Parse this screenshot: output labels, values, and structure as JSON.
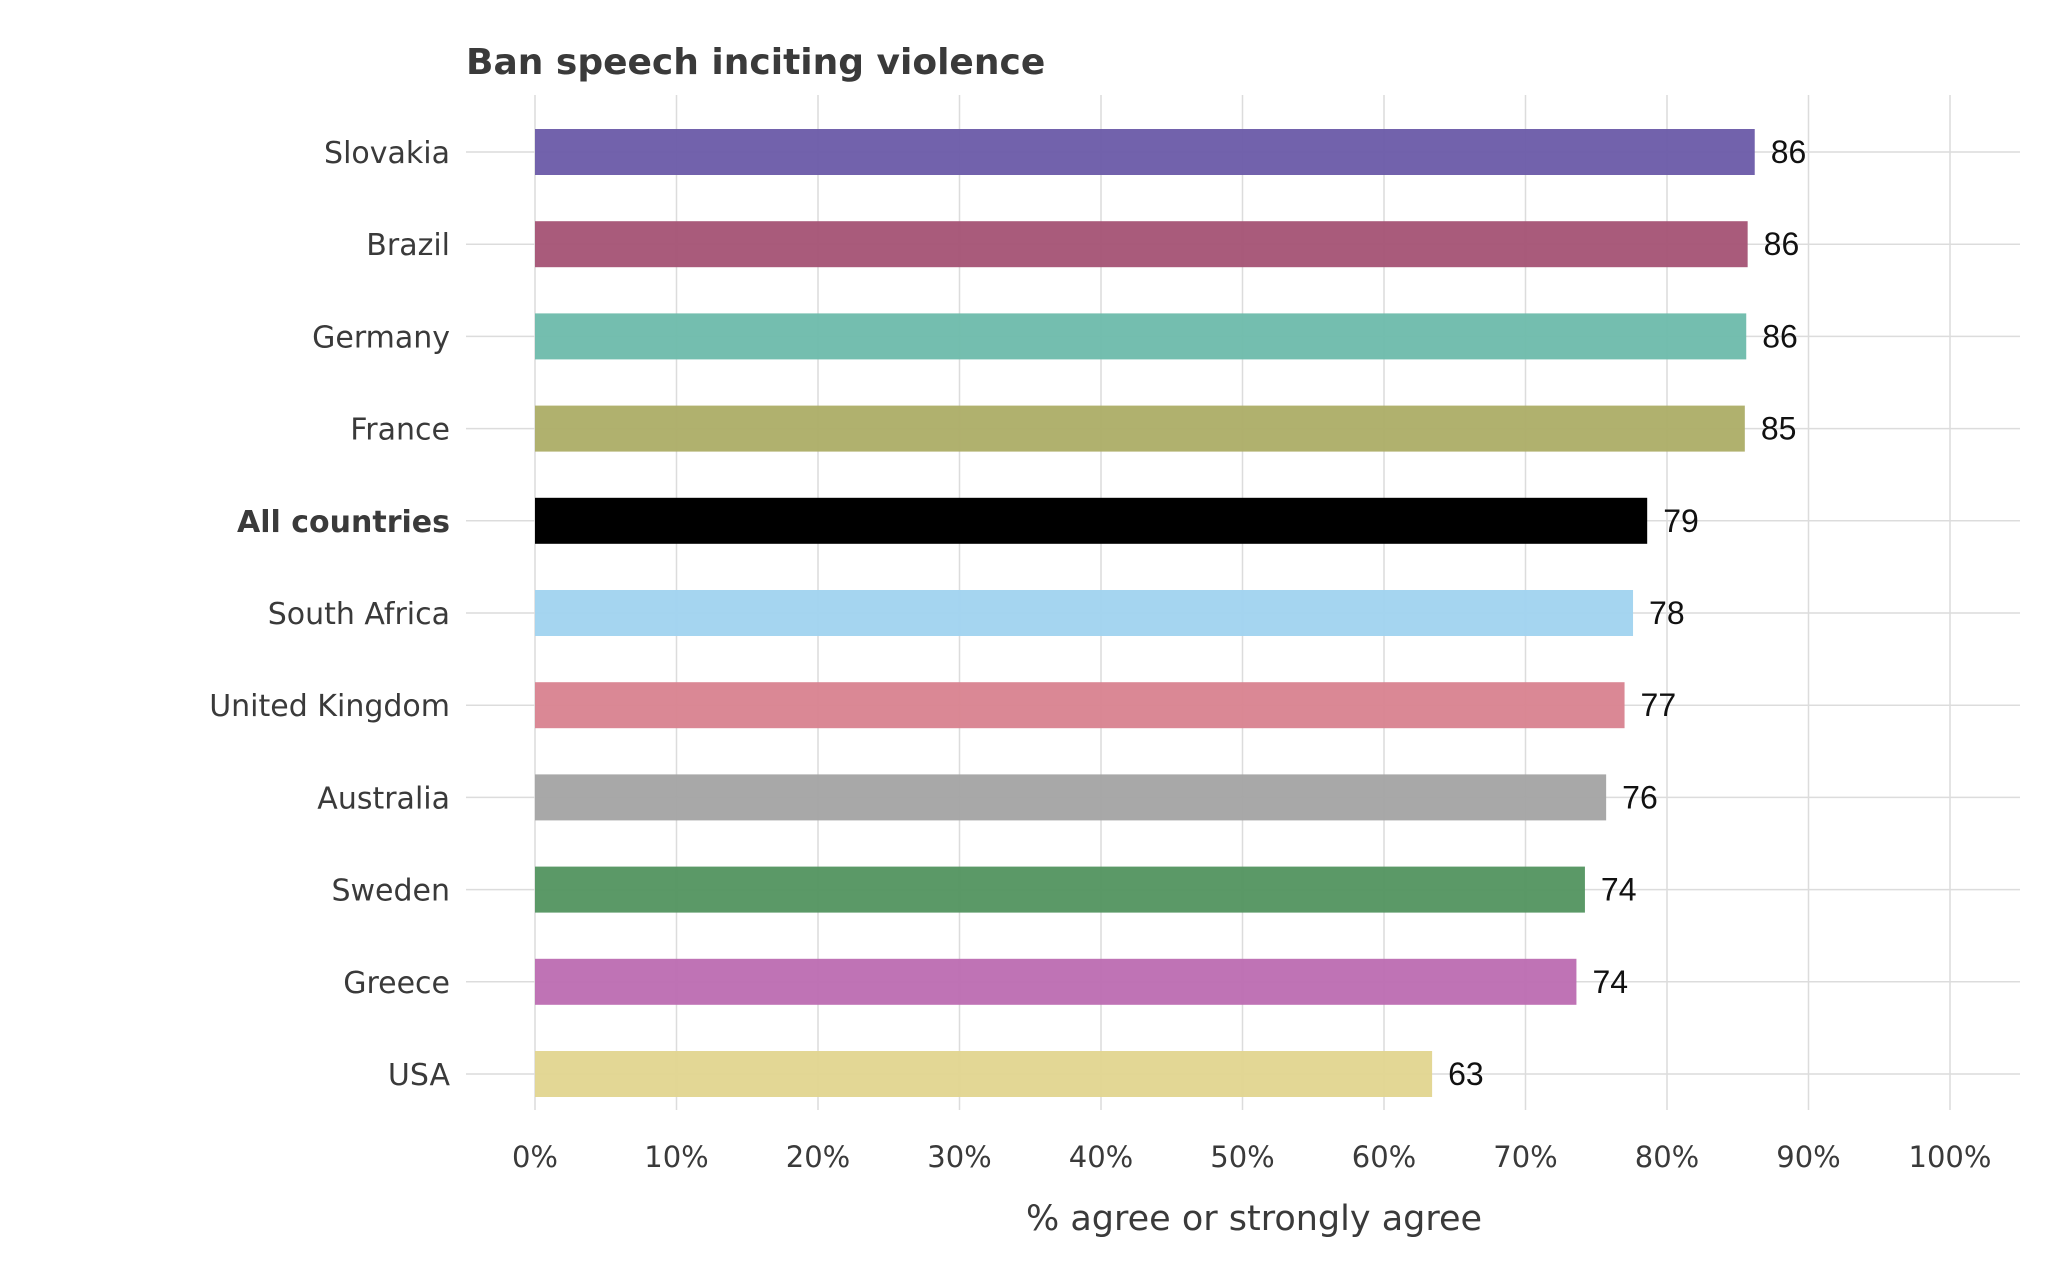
{
  "chart_data": {
    "type": "bar",
    "orientation": "horizontal",
    "title": "Ban speech inciting violence",
    "xlabel": "% agree or strongly agree",
    "ylabel": "",
    "xlim": [
      0,
      100
    ],
    "x_ticks": [
      0,
      10,
      20,
      30,
      40,
      50,
      60,
      70,
      80,
      90,
      100
    ],
    "x_tick_labels": [
      "0%",
      "10%",
      "20%",
      "30%",
      "40%",
      "50%",
      "60%",
      "70%",
      "80%",
      "90%",
      "100%"
    ],
    "grid": true,
    "categories": [
      "Slovakia",
      "Brazil",
      "Germany",
      "France",
      "All countries",
      "South Africa",
      "United Kingdom",
      "Australia",
      "Sweden",
      "Greece",
      "USA"
    ],
    "values": [
      86.2,
      85.7,
      85.6,
      85.5,
      78.6,
      77.6,
      77.0,
      75.7,
      74.2,
      73.6,
      63.4
    ],
    "value_labels": [
      "86",
      "86",
      "86",
      "85",
      "79",
      "78",
      "77",
      "76",
      "74",
      "74",
      "63"
    ],
    "emphasized": [
      "All countries"
    ],
    "colors": [
      "#6a5aa8",
      "#a45274",
      "#6dbaab",
      "#acad66",
      "#000000",
      "#a0d3ef",
      "#d8828f",
      "#a3a3a3",
      "#52935f",
      "#bc6cb1",
      "#e2d58f"
    ]
  }
}
